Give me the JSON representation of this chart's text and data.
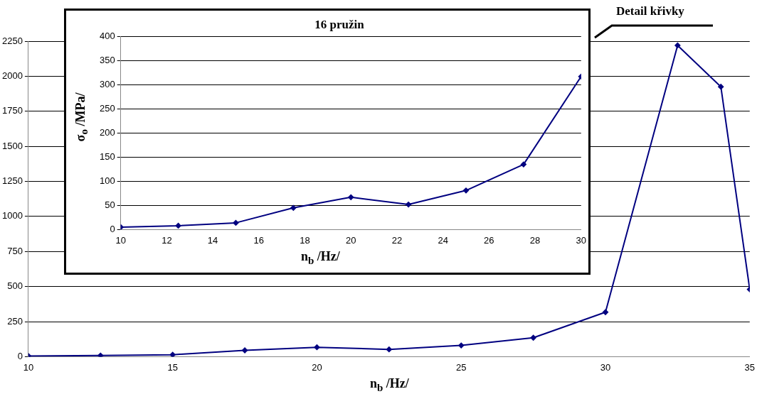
{
  "chart_data": [
    {
      "type": "line",
      "xlabel": "n$_{b}$ /Hz/",
      "annotations": [
        "Detail křivky"
      ],
      "color": "#000080",
      "marker": "diamond",
      "grid": "y",
      "x": [
        10,
        12.5,
        15,
        17.5,
        20,
        22.5,
        25,
        27.5,
        30,
        32.5,
        34,
        35
      ],
      "values": [
        5,
        8,
        14,
        45,
        67,
        52,
        80,
        135,
        317,
        2220,
        1925,
        480
      ],
      "xlim": [
        10,
        35
      ],
      "xticks": [
        10,
        15,
        20,
        25,
        30,
        35
      ],
      "ylim": [
        0,
        2250
      ],
      "yticks": [
        0,
        250,
        500,
        750,
        1000,
        1250,
        1500,
        1750,
        2000,
        2250
      ]
    },
    {
      "type": "line",
      "title": "16 pružin",
      "xlabel": "n$_{b}$ /Hz/",
      "ylabel": "σ$_{o}$ /MPa/",
      "color": "#000080",
      "marker": "diamond",
      "grid": "y",
      "x": [
        10,
        12.5,
        15,
        17.5,
        20,
        22.5,
        25,
        27.5,
        30
      ],
      "values": [
        5,
        8,
        14,
        45,
        67,
        52,
        81,
        135,
        317
      ],
      "xlim": [
        10,
        30
      ],
      "xticks": [
        10,
        12,
        14,
        16,
        18,
        20,
        22,
        24,
        26,
        28,
        30
      ],
      "ylim": [
        0,
        400
      ],
      "yticks": [
        0,
        50,
        100,
        150,
        200,
        250,
        300,
        350,
        400
      ]
    }
  ]
}
